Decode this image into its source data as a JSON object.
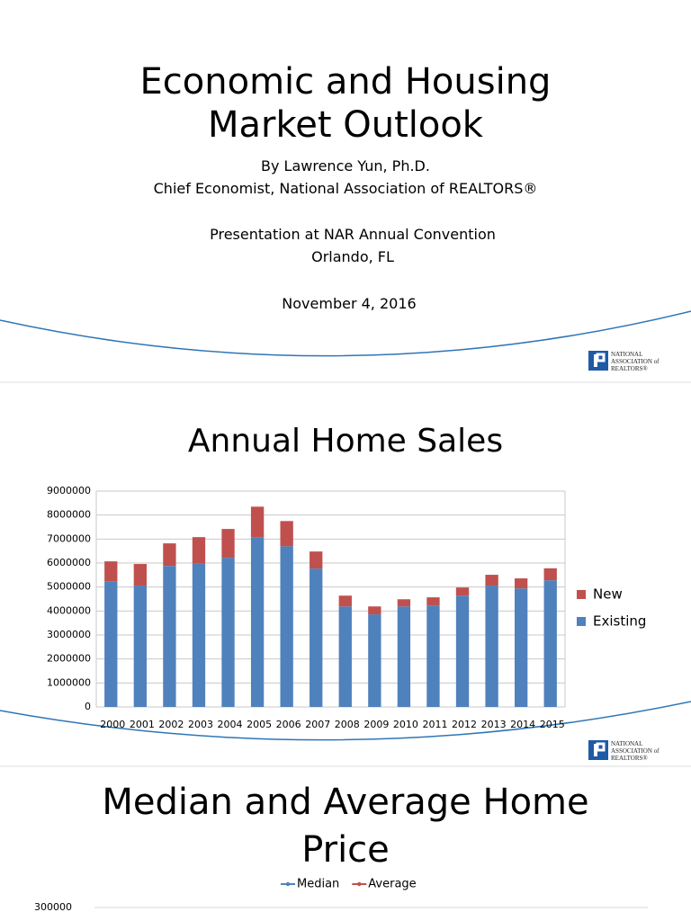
{
  "slide1": {
    "title": [
      "Economic and Housing",
      "Market Outlook"
    ],
    "lines": [
      "By Lawrence Yun, Ph.D.",
      "Chief Economist, National Association of REALTORS®",
      "Presentation at NAR Annual Convention",
      "Orlando, FL",
      "November 4, 2016"
    ],
    "logo": [
      "NATIONAL",
      "ASSOCIATION of",
      "REALTORS®"
    ]
  },
  "slide2": {
    "logo": [
      "NATIONAL",
      "ASSOCIATION of",
      "REALTORS®"
    ]
  },
  "chart_data": [
    {
      "type": "bar",
      "title": "Annual Home Sales",
      "categories": [
        "2000",
        "2001",
        "2002",
        "2003",
        "2004",
        "2005",
        "2006",
        "2007",
        "2008",
        "2009",
        "2010",
        "2011",
        "2012",
        "2013",
        "2014",
        "2015"
      ],
      "series": [
        {
          "name": "Existing",
          "color": "#4f81bd",
          "values": [
            5240000,
            5060000,
            5880000,
            5990000,
            6220000,
            7080000,
            6700000,
            5770000,
            4190000,
            3860000,
            4190000,
            4230000,
            4640000,
            5060000,
            4940000,
            5280000
          ]
        },
        {
          "name": "New",
          "color": "#c0504d",
          "values": [
            830000,
            900000,
            940000,
            1090000,
            1200000,
            1270000,
            1050000,
            710000,
            450000,
            330000,
            300000,
            340000,
            340000,
            450000,
            420000,
            500000
          ]
        }
      ],
      "stacked": true,
      "ylim": [
        0,
        9000000
      ],
      "yticks": [
        0,
        1000000,
        2000000,
        3000000,
        4000000,
        5000000,
        6000000,
        7000000,
        8000000,
        9000000
      ],
      "grid": true
    },
    {
      "type": "line",
      "title": [
        "Median and Average Home",
        "Price"
      ],
      "series": [
        {
          "name": "Median",
          "color": "#4f81bd",
          "values": []
        },
        {
          "name": "Average",
          "color": "#c0504d",
          "values": []
        }
      ],
      "yticks": [
        300000
      ],
      "grid": true
    }
  ]
}
